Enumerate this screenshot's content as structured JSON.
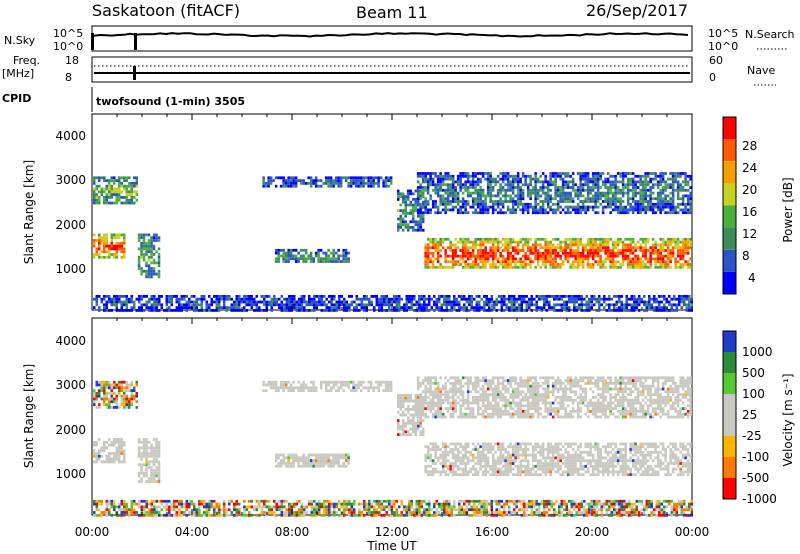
{
  "header": {
    "station": "Saskatoon (fitACF)",
    "beam": "Beam 11",
    "date": "26/Sep/2017"
  },
  "noise_panel": {
    "left_label": "N.Sky",
    "left_ticks": [
      "10^5",
      "10^0"
    ],
    "right_label": "N.Search",
    "right_ticks": [
      "10^5",
      "10^0"
    ]
  },
  "freq_panel": {
    "left_label_1": "Freq.",
    "left_label_2": "[MHz]",
    "left_ticks": [
      "18",
      "8"
    ],
    "right_label": "Nave",
    "right_ticks": [
      "60",
      "0"
    ]
  },
  "cpid_panel": {
    "label": "CPID",
    "text": "twofsound (1-min) 3505"
  },
  "x_axis": {
    "label": "Time UT",
    "ticks": [
      "00:00",
      "04:00",
      "08:00",
      "12:00",
      "16:00",
      "20:00",
      "00:00"
    ]
  },
  "colors": {
    "power_scale": [
      "#0000ff",
      "#2a55c8",
      "#3d8c5a",
      "#4caf3c",
      "#c8d21e",
      "#f5a000",
      "#ff5a00",
      "#ff0000"
    ],
    "velocity_scale": [
      "#1e3cc8",
      "#2d8c3c",
      "#55c832",
      "#c8c8c0",
      "#c8c8c0",
      "#ffb400",
      "#ff7800",
      "#ff0000"
    ],
    "ground_scatter": "#c8c8c0"
  },
  "chart_data": [
    {
      "type": "heatmap",
      "title": "",
      "xlabel": "Time UT",
      "ylabel": "Slant Range [km]",
      "xlim": [
        0,
        24
      ],
      "ylim": [
        180,
        4600
      ],
      "y_ticks": [
        "1000",
        "2000",
        "3000",
        "4000"
      ],
      "colorbar_label": "Power [dB]",
      "colorbar_ticks": [
        "4",
        "8",
        "12",
        "16",
        "20",
        "24",
        "28"
      ],
      "regions": [
        {
          "t0": 0.0,
          "t1": 1.3,
          "r0": 1350,
          "r1": 1900,
          "level": 0.75
        },
        {
          "t0": 0.0,
          "t1": 1.8,
          "r0": 2600,
          "r1": 3200,
          "level": 0.4
        },
        {
          "t0": 1.8,
          "t1": 2.7,
          "r0": 900,
          "r1": 1900,
          "level": 0.35
        },
        {
          "t0": 6.8,
          "t1": 12.0,
          "r0": 2950,
          "r1": 3200,
          "level": 0.2
        },
        {
          "t0": 7.3,
          "t1": 10.3,
          "r0": 1250,
          "r1": 1550,
          "level": 0.3
        },
        {
          "t0": 12.2,
          "t1": 13.3,
          "r0": 2000,
          "r1": 2900,
          "level": 0.3
        },
        {
          "t0": 13.3,
          "t1": 24.0,
          "r0": 1100,
          "r1": 1800,
          "level": 0.8
        },
        {
          "t0": 13.0,
          "t1": 24.0,
          "r0": 2400,
          "r1": 3300,
          "level": 0.25
        },
        {
          "t0": 0.0,
          "t1": 24.0,
          "r0": 180,
          "r1": 500,
          "level": 0.15
        }
      ]
    },
    {
      "type": "heatmap",
      "title": "",
      "xlabel": "Time UT",
      "ylabel": "Slant Range [km]",
      "xlim": [
        0,
        24
      ],
      "ylim": [
        180,
        4600
      ],
      "y_ticks": [
        "1000",
        "2000",
        "3000",
        "4000"
      ],
      "colorbar_label": "Velocity [m s⁻¹]",
      "colorbar_ticks": [
        "1000",
        "500",
        "100",
        "25",
        "-25",
        "-100",
        "-500",
        "-1000"
      ],
      "regions": [
        {
          "t0": 0.0,
          "t1": 1.3,
          "r0": 1350,
          "r1": 1900,
          "class": "ground"
        },
        {
          "t0": 0.0,
          "t1": 1.8,
          "r0": 2600,
          "r1": 3200,
          "class": "mixed"
        },
        {
          "t0": 1.8,
          "t1": 2.7,
          "r0": 900,
          "r1": 1900,
          "class": "ground"
        },
        {
          "t0": 6.8,
          "t1": 12.0,
          "r0": 2950,
          "r1": 3200,
          "class": "ground"
        },
        {
          "t0": 7.3,
          "t1": 10.3,
          "r0": 1250,
          "r1": 1550,
          "class": "ground"
        },
        {
          "t0": 12.2,
          "t1": 13.3,
          "r0": 2000,
          "r1": 2900,
          "class": "ground"
        },
        {
          "t0": 13.3,
          "t1": 24.0,
          "r0": 1100,
          "r1": 1800,
          "class": "ground"
        },
        {
          "t0": 13.0,
          "t1": 24.0,
          "r0": 2400,
          "r1": 3300,
          "class": "ground"
        },
        {
          "t0": 0.0,
          "t1": 24.0,
          "r0": 180,
          "r1": 500,
          "class": "mixed"
        }
      ]
    }
  ]
}
